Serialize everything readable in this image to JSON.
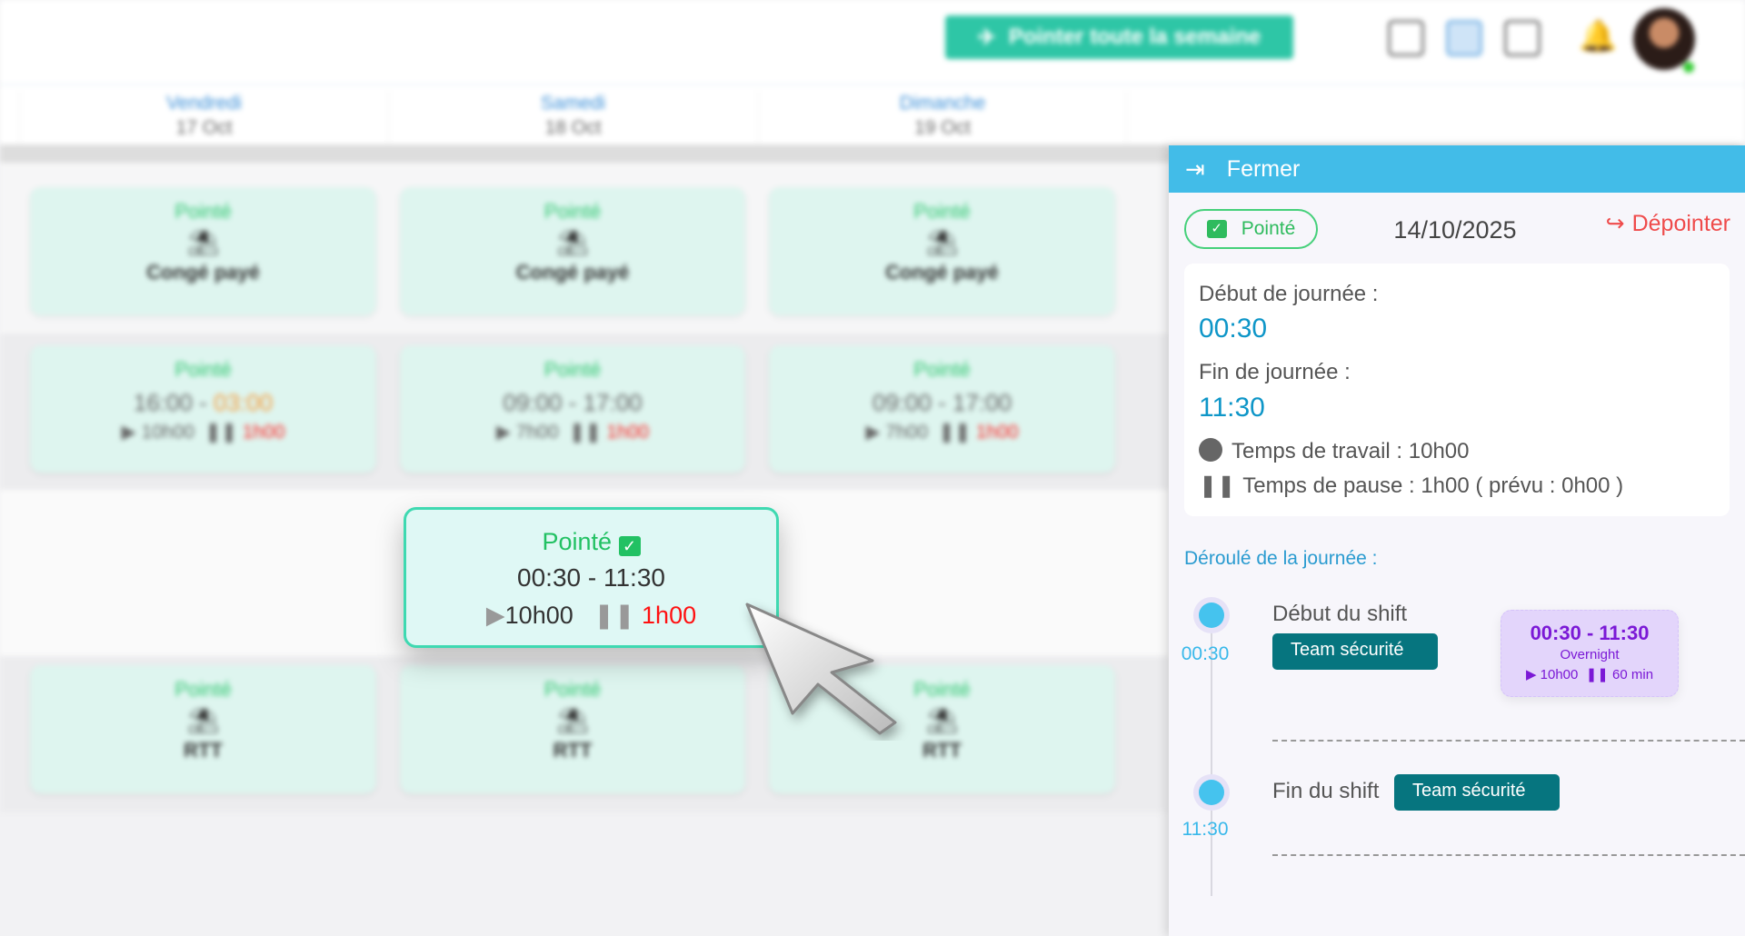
{
  "topbar": {
    "week_button": "Pointer toute la semaine",
    "icons": [
      "calendar-clock-icon",
      "calendar-icon",
      "calendar-grid-icon",
      "bell-icon"
    ],
    "avatar": "user-avatar"
  },
  "days": [
    {
      "name": "Vendredi",
      "date": "17 Oct"
    },
    {
      "name": "Samedi",
      "date": "18 Oct"
    },
    {
      "name": "Dimanche",
      "date": "19 Oct"
    }
  ],
  "rows": {
    "leave": {
      "status": "Pointé",
      "label": "Congé payé"
    },
    "shifts": [
      {
        "status": "Pointé",
        "start": "16:00",
        "end": "03:00",
        "work": "10h00",
        "pause": "1h00"
      },
      {
        "status": "Pointé",
        "start": "09:00",
        "end": "17:00",
        "work": "7h00",
        "pause": "1h00"
      },
      {
        "status": "Pointé",
        "start": "09:00",
        "end": "17:00",
        "work": "7h00",
        "pause": "1h00"
      }
    ],
    "rtt": {
      "status": "Pointé",
      "label": "RTT"
    }
  },
  "popup": {
    "status": "Pointé",
    "range": "00:30 - 11:30",
    "work": "10h00",
    "pause": "1h00"
  },
  "panel": {
    "close": "Fermer",
    "status": "Pointé",
    "date": "14/10/2025",
    "unclock": "Dépointer",
    "start_label": "Début de journée :",
    "start": "00:30",
    "end_label": "Fin de journée :",
    "end": "11:30",
    "work": "Temps de travail : 10h00",
    "pause": "Temps de pause : 1h00 ( prévu : 0h00 )",
    "timeline_title": "Déroulé de la journée :",
    "timeline": [
      {
        "label": "Début du shift",
        "time": "00:30",
        "team": "Team sécurité"
      },
      {
        "label": "Fin du shift",
        "time": "11:30",
        "team": "Team sécurité"
      }
    ],
    "shift_card": {
      "range": "00:30 - 11:30",
      "type": "Overnight",
      "work": "10h00",
      "pause": "60 min"
    }
  },
  "colors": {
    "accent": "#42bce8",
    "green": "#2ec6a6",
    "red": "#ef4b4b",
    "team": "#06757f",
    "purple": "#7b19d6"
  }
}
